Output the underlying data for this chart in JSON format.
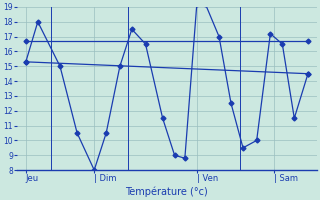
{
  "title": "",
  "xlabel": "Température (°c)",
  "ylabel": "",
  "background_color": "#cce8e0",
  "grid_color": "#9bbfbf",
  "line_color": "#1a3cb0",
  "text_color": "#1a3cb0",
  "ymin": 8,
  "ymax": 19,
  "yticks": [
    8,
    9,
    10,
    11,
    12,
    13,
    14,
    15,
    16,
    17,
    18,
    19
  ],
  "day_labels": [
    "Jeu",
    "| Dim",
    "| Ven",
    "| Sam"
  ],
  "day_positions": [
    0.5,
    4.5,
    10.5,
    15.0
  ],
  "vline_positions": [
    2.0,
    6.5,
    13.0
  ],
  "series1": {
    "x": [
      0.5,
      1.2,
      2.5,
      3.5,
      4.5,
      5.2,
      6.0,
      6.7,
      7.5,
      8.5,
      9.2,
      9.8,
      10.5,
      11.0,
      11.8,
      12.5,
      13.2,
      14.0,
      14.8,
      15.5,
      16.2,
      17.0
    ],
    "y": [
      15.3,
      18.0,
      15.0,
      10.5,
      8.0,
      10.5,
      15.0,
      17.5,
      16.5,
      11.5,
      9.0,
      8.8,
      19.2,
      19.2,
      17.0,
      12.5,
      9.5,
      10.0,
      17.2,
      16.5,
      11.5,
      14.5
    ]
  },
  "series2": {
    "x": [
      0.5,
      17.0
    ],
    "y": [
      16.7,
      16.7
    ]
  },
  "series3": {
    "x": [
      0.5,
      17.0
    ],
    "y": [
      15.3,
      14.5
    ]
  }
}
